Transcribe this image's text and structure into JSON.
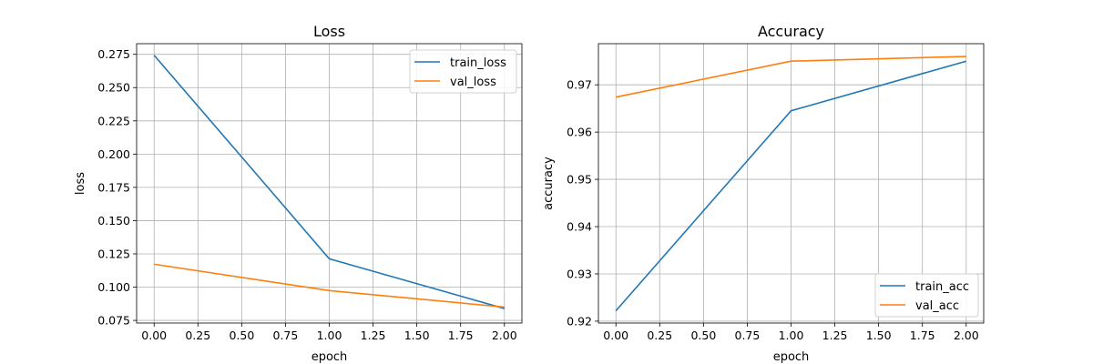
{
  "chart_data": [
    {
      "type": "line",
      "title": "Loss",
      "xlabel": "epoch",
      "ylabel": "loss",
      "x": [
        0,
        1,
        2
      ],
      "xlim": [
        -0.1,
        2.1
      ],
      "ylim": [
        0.073,
        0.283
      ],
      "xticks": [
        "0.00",
        "0.25",
        "0.50",
        "0.75",
        "1.00",
        "1.25",
        "1.50",
        "1.75",
        "2.00"
      ],
      "yticks": [
        "0.075",
        "0.100",
        "0.125",
        "0.150",
        "0.175",
        "0.200",
        "0.225",
        "0.250",
        "0.275"
      ],
      "grid": true,
      "legend": "top-right",
      "series": [
        {
          "name": "train_loss",
          "color": "#1f77b4",
          "values": [
            0.2743,
            0.1213,
            0.0839
          ]
        },
        {
          "name": "val_loss",
          "color": "#ff7f0e",
          "values": [
            0.1172,
            0.0974,
            0.085
          ]
        }
      ]
    },
    {
      "type": "line",
      "title": "Accuracy",
      "xlabel": "epoch",
      "ylabel": "accuracy",
      "x": [
        0,
        1,
        2
      ],
      "xlim": [
        -0.1,
        2.1
      ],
      "ylim": [
        0.9196,
        0.9787
      ],
      "xticks": [
        "0.00",
        "0.25",
        "0.50",
        "0.75",
        "1.00",
        "1.25",
        "1.50",
        "1.75",
        "2.00"
      ],
      "yticks": [
        "0.92",
        "0.93",
        "0.94",
        "0.95",
        "0.96",
        "0.97"
      ],
      "grid": true,
      "legend": "bottom-right",
      "series": [
        {
          "name": "train_acc",
          "color": "#1f77b4",
          "values": [
            0.9222,
            0.9645,
            0.975
          ]
        },
        {
          "name": "val_acc",
          "color": "#ff7f0e",
          "values": [
            0.9674,
            0.975,
            0.976
          ]
        }
      ]
    }
  ]
}
